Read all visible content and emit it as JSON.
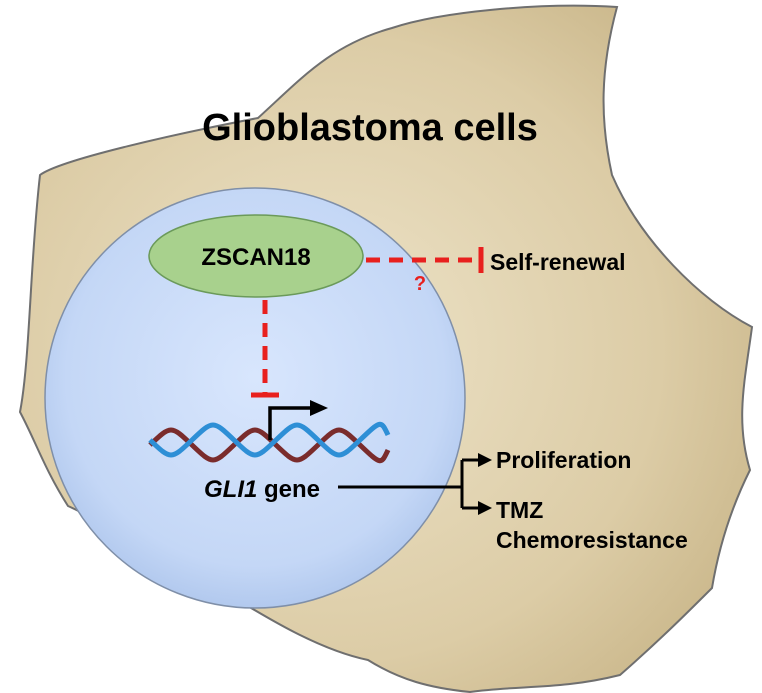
{
  "title": "Glioblastoma cells",
  "nodes": {
    "protein": "ZSCAN18",
    "gene_name": "GLI1",
    "gene_suffix": " gene",
    "outcome_self_renewal": "Self-renewal",
    "outcome_proliferation": "Proliferation",
    "outcome_tmz_line1": "TMZ",
    "outcome_tmz_line2": "Chemoresistance"
  },
  "annotations": {
    "uncertain_link": "?"
  },
  "colors": {
    "cell_body": "#dccca6",
    "cell_outline": "#6f6f6f",
    "nucleus_center": "#cfe0fb",
    "nucleus_edge": "#b0c8ec",
    "protein_fill": "#a8d18d",
    "inhibition": "#e8201e",
    "dna_strand_a": "#2e8fd6",
    "dna_strand_b": "#7a2c2c",
    "arrow": "#000000"
  }
}
